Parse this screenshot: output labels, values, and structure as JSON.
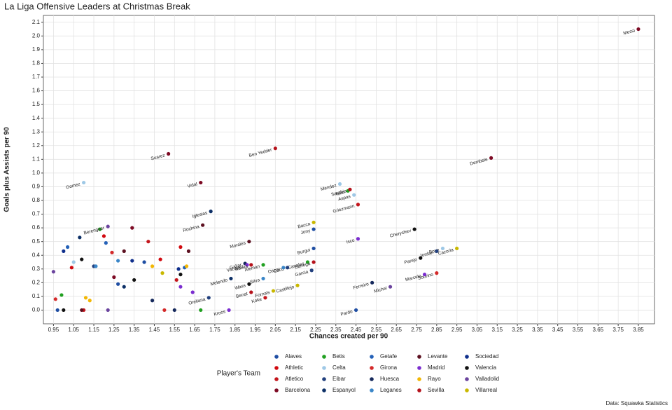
{
  "chart_data": {
    "type": "scatter",
    "title": "La Liga Offensive Leaders at Christmas Break",
    "x_label": "Chances created per 90",
    "y_label": "Goals plus Assists per 90",
    "legend_title": "Player's Team",
    "caption": "Data: Squawka Statistics",
    "grid": true,
    "xlim": [
      0.9,
      3.93
    ],
    "ylim": [
      -0.1,
      2.15
    ],
    "xticks": [
      0.95,
      1.05,
      1.15,
      1.25,
      1.35,
      1.45,
      1.55,
      1.65,
      1.75,
      1.85,
      1.95,
      2.05,
      2.15,
      2.25,
      2.35,
      2.45,
      2.55,
      2.65,
      2.75,
      2.85,
      2.95,
      3.05,
      3.15,
      3.25,
      3.35,
      3.45,
      3.55,
      3.65,
      3.75,
      3.85
    ],
    "yticks": [
      {
        "value": 0,
        "label": "0.0"
      },
      0.1,
      0.2,
      0.3,
      0.4,
      0.5,
      0.6,
      0.7,
      0.8,
      0.9,
      {
        "value": 1,
        "label": "1.0"
      },
      1.1,
      1.2,
      1.3,
      1.4,
      1.5,
      1.6,
      1.7,
      1.8,
      1.9,
      {
        "value": 2,
        "label": "2.0"
      },
      2.1
    ],
    "series": [
      {
        "name": "Alaves",
        "color": "#1f4ea3",
        "x": [
          2.24,
          2.24,
          0.97,
          1.4,
          1.27,
          2.45
        ],
        "values": [
          0.59,
          0.45,
          0.0,
          0.35,
          0.19,
          0.0
        ],
        "labels": [
          "Jony",
          "Burgui",
          null,
          null,
          null,
          "Pardo"
        ]
      },
      {
        "name": "Athletic",
        "color": "#d10a10",
        "x": [
          1.04,
          1.48,
          1.58,
          1.2
        ],
        "values": [
          0.31,
          0.37,
          0.46,
          0.54
        ],
        "labels": [
          null,
          null,
          null,
          null
        ]
      },
      {
        "name": "Atletico",
        "color": "#c4161c",
        "x": [
          2.46,
          2.0,
          1.1,
          1.42,
          1.56
        ],
        "values": [
          0.77,
          0.09,
          0.0,
          0.5,
          0.22
        ],
        "labels": [
          "Griezmann",
          "Koke",
          null,
          null,
          null
        ]
      },
      {
        "name": "Barcelona",
        "color": "#7d0a24",
        "x": [
          3.85,
          3.12,
          1.52,
          1.68,
          1.34,
          1.25
        ],
        "values": [
          2.05,
          1.11,
          1.14,
          0.93,
          0.6,
          0.24
        ],
        "labels": [
          "Messi",
          "Dembele",
          "Suarez",
          "Vidal",
          null,
          null
        ]
      },
      {
        "name": "Betis",
        "color": "#21a021",
        "x": [
          2.41,
          2.21,
          1.99,
          1.18,
          1.68,
          0.99
        ],
        "values": [
          0.87,
          0.35,
          0.33,
          0.59,
          0.0,
          0.11
        ],
        "labels": [
          "Tello",
          "Canales",
          "Aleman",
          null,
          null,
          null
        ]
      },
      {
        "name": "Celta",
        "color": "#9ec8e6",
        "x": [
          2.37,
          2.44,
          1.1,
          2.88,
          1.05
        ],
        "values": [
          0.92,
          0.84,
          0.93,
          0.45,
          0.35
        ],
        "labels": [
          "Mendez",
          "Aspas",
          "Gomez",
          "Boye",
          null
        ]
      },
      {
        "name": "Eibar",
        "color": "#22407e",
        "x": [
          2.85,
          2.11,
          2.23,
          1.72,
          1.15
        ],
        "values": [
          0.43,
          0.31,
          0.29,
          0.09,
          0.32
        ],
        "labels": [
          "Jordan",
          "Cucu",
          "Garcia",
          "Orellana",
          null
        ]
      },
      {
        "name": "Espanyol",
        "color": "#0c2f66",
        "x": [
          1.73,
          1.83,
          1.08,
          1.3
        ],
        "values": [
          0.72,
          0.23,
          0.53,
          0.17
        ],
        "labels": [
          "Iglesias",
          "Melendo",
          null,
          null
        ]
      },
      {
        "name": "Getafe",
        "color": "#2461b8",
        "x": [
          1.21,
          1.02,
          1.6
        ],
        "values": [
          0.49,
          0.46,
          0.31
        ],
        "labels": [
          null,
          null,
          null
        ]
      },
      {
        "name": "Girona",
        "color": "#d42a2a",
        "x": [
          2.85,
          1.24,
          1.5,
          0.96
        ],
        "values": [
          0.27,
          0.42,
          0.0,
          0.08
        ],
        "labels": [
          "Sobrino",
          null,
          null,
          null
        ]
      },
      {
        "name": "Huesca",
        "color": "#16295c",
        "x": [
          2.53,
          1.9,
          1.44,
          1.55
        ],
        "values": [
          0.2,
          0.34,
          0.07,
          0.0
        ],
        "labels": [
          "Ferreiro",
          "Gallar",
          null,
          null
        ]
      },
      {
        "name": "Leganes",
        "color": "#3a86c8",
        "x": [
          2.09,
          1.99,
          1.16,
          1.27
        ],
        "values": [
          0.31,
          0.23,
          0.32,
          0.36
        ],
        "labels": [
          "Oscar",
          "Silva",
          null,
          null
        ]
      },
      {
        "name": "Levante",
        "color": "#5c1020",
        "x": [
          1.92,
          1.69,
          1.09,
          1.3,
          1.62
        ],
        "values": [
          0.5,
          0.62,
          0.0,
          0.43,
          0.43
        ],
        "labels": [
          "Morales",
          "Rochina",
          null,
          null,
          null
        ]
      },
      {
        "name": "Madrid",
        "color": "#7b2dcf",
        "x": [
          2.46,
          2.79,
          1.91,
          1.82,
          1.58,
          1.64
        ],
        "values": [
          0.52,
          0.26,
          0.33,
          0.0,
          0.17,
          0.13
        ],
        "labels": [
          "Isco",
          "Marcelo",
          "Vazquez",
          "Kroos",
          null,
          null
        ]
      },
      {
        "name": "Rayo",
        "color": "#f2b705",
        "x": [
          1.44,
          1.11,
          1.13,
          1.61
        ],
        "values": [
          0.32,
          0.09,
          0.07,
          0.32
        ],
        "labels": [
          null,
          null,
          null,
          null
        ]
      },
      {
        "name": "Sevilla",
        "color": "#b5121b",
        "x": [
          2.05,
          2.42,
          1.93,
          2.24,
          1.93
        ],
        "values": [
          1.18,
          0.88,
          0.33,
          0.35,
          0.13
        ],
        "labels": [
          "Ben Yedder",
          "Sarabia",
          "Navas",
          "Banega",
          "Benat"
        ]
      },
      {
        "name": "Sociedad",
        "color": "#0f2f8c",
        "x": [
          1.34,
          1.0,
          1.57
        ],
        "values": [
          0.36,
          0.43,
          0.3
        ],
        "labels": [
          null,
          null,
          null
        ]
      },
      {
        "name": "Valencia",
        "color": "#111111",
        "x": [
          2.74,
          2.77,
          1.92,
          1.09,
          1.35,
          1.58,
          1.0
        ],
        "values": [
          0.59,
          0.38,
          0.19,
          0.37,
          0.22,
          0.26,
          0.0
        ],
        "labels": [
          "Cheryshev",
          "Parejo",
          "Wass",
          null,
          null,
          null,
          null
        ]
      },
      {
        "name": "Valladolid",
        "color": "#6b449e",
        "x": [
          2.62,
          1.22,
          0.95,
          1.22
        ],
        "values": [
          0.17,
          0.61,
          0.28,
          0.0
        ],
        "labels": [
          "Michel",
          "Berenguer",
          null,
          null
        ]
      },
      {
        "name": "Villarreal",
        "color": "#c9b800",
        "x": [
          2.95,
          2.24,
          2.04,
          2.16,
          1.49
        ],
        "values": [
          0.45,
          0.64,
          0.14,
          0.18,
          0.27
        ],
        "labels": [
          "Cazorla",
          "Bacca",
          "Fornals",
          "Castillejo",
          null
        ]
      }
    ]
  }
}
